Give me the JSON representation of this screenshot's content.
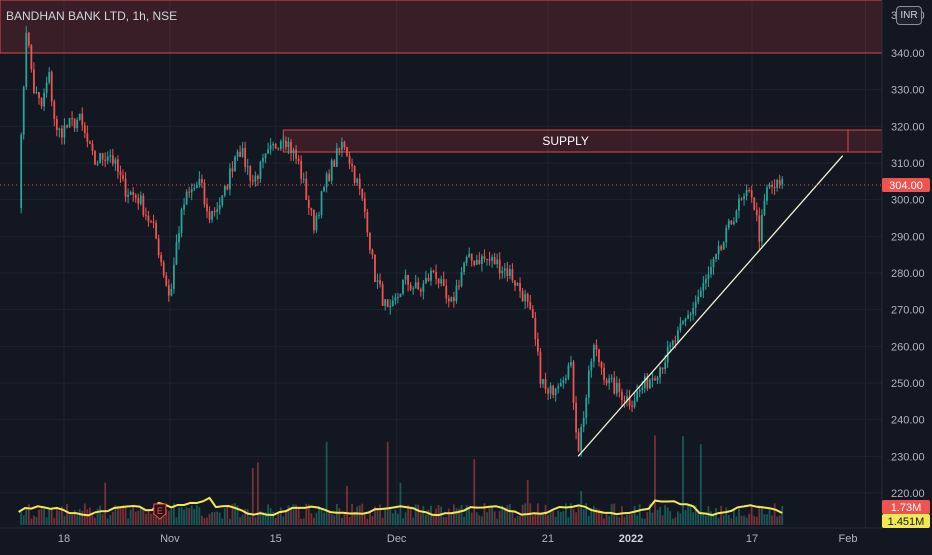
{
  "header": {
    "symbol": "BANDHAN BANK LTD, 1h, NSE",
    "currency": "INR"
  },
  "chart_data": {
    "type": "candlestick",
    "ylim": [
      214,
      350
    ],
    "y_ticks": [
      220,
      230,
      240,
      250,
      260,
      270,
      280,
      290,
      300,
      310,
      320,
      330,
      340
    ],
    "x_ticks": [
      "18",
      "Nov",
      "15",
      "Dec",
      "21",
      "2022",
      "17",
      "Feb"
    ],
    "last_price": 304,
    "last_price_label": "304.00",
    "zones": [
      {
        "name": "upper-supply",
        "low": 340,
        "high": 355,
        "label": ""
      },
      {
        "name": "supply",
        "low": 313,
        "high": 319,
        "label": "SUPPLY"
      }
    ],
    "trendline": {
      "from": {
        "date": "Dec 25",
        "price": 230
      },
      "to": {
        "date": "Jan 29",
        "price": 312
      }
    },
    "price_path": [
      [
        "Oct 12",
        300
      ],
      [
        "Oct 13",
        347
      ],
      [
        "Oct 14",
        330
      ],
      [
        "Oct 15",
        325
      ],
      [
        "Oct 16",
        334
      ],
      [
        "Oct 17",
        318
      ],
      [
        "Oct 20",
        322
      ],
      [
        "Oct 22",
        310
      ],
      [
        "Oct 24",
        313
      ],
      [
        "Oct 26",
        303
      ],
      [
        "Oct 28",
        300
      ],
      [
        "Oct 30",
        291
      ],
      [
        "Nov 1",
        273
      ],
      [
        "Nov 2",
        290
      ],
      [
        "Nov 3",
        300
      ],
      [
        "Nov 5",
        305
      ],
      [
        "Nov 6",
        295
      ],
      [
        "Nov 8",
        300
      ],
      [
        "Nov 10",
        315
      ],
      [
        "Nov 12",
        305
      ],
      [
        "Nov 14",
        312
      ],
      [
        "Nov 16",
        318
      ],
      [
        "Nov 18",
        310
      ],
      [
        "Nov 20",
        293
      ],
      [
        "Nov 22",
        307
      ],
      [
        "Nov 24",
        316
      ],
      [
        "Nov 26",
        303
      ],
      [
        "Nov 27",
        295
      ],
      [
        "Nov 28",
        280
      ],
      [
        "Nov 30",
        268
      ],
      [
        "Dec 2",
        278
      ],
      [
        "Dec 4",
        275
      ],
      [
        "Dec 6",
        281
      ],
      [
        "Dec 8",
        270
      ],
      [
        "Dec 10",
        283
      ],
      [
        "Dec 12",
        284
      ],
      [
        "Dec 14",
        283
      ],
      [
        "Dec 16",
        280
      ],
      [
        "Dec 18",
        273
      ],
      [
        "Dec 19",
        266
      ],
      [
        "Dec 20",
        252
      ],
      [
        "Dec 21",
        246
      ],
      [
        "Dec 22",
        250
      ],
      [
        "Dec 24",
        255
      ],
      [
        "Dec 25",
        232
      ],
      [
        "Dec 26",
        245
      ],
      [
        "Dec 27",
        260
      ],
      [
        "Dec 29",
        250
      ],
      [
        "Jan 1",
        245
      ],
      [
        "Jan 3",
        250
      ],
      [
        "Jan 5",
        255
      ],
      [
        "Jan 7",
        262
      ],
      [
        "Jan 9",
        270
      ],
      [
        "Jan 11",
        278
      ],
      [
        "Jan 13",
        287
      ],
      [
        "Jan 15",
        298
      ],
      [
        "Jan 17",
        302
      ],
      [
        "Jan 18",
        290
      ],
      [
        "Jan 19",
        303
      ],
      [
        "Jan 21",
        304
      ]
    ],
    "volume": {
      "current_label": "1.73M",
      "average_label": "1.451M"
    }
  }
}
